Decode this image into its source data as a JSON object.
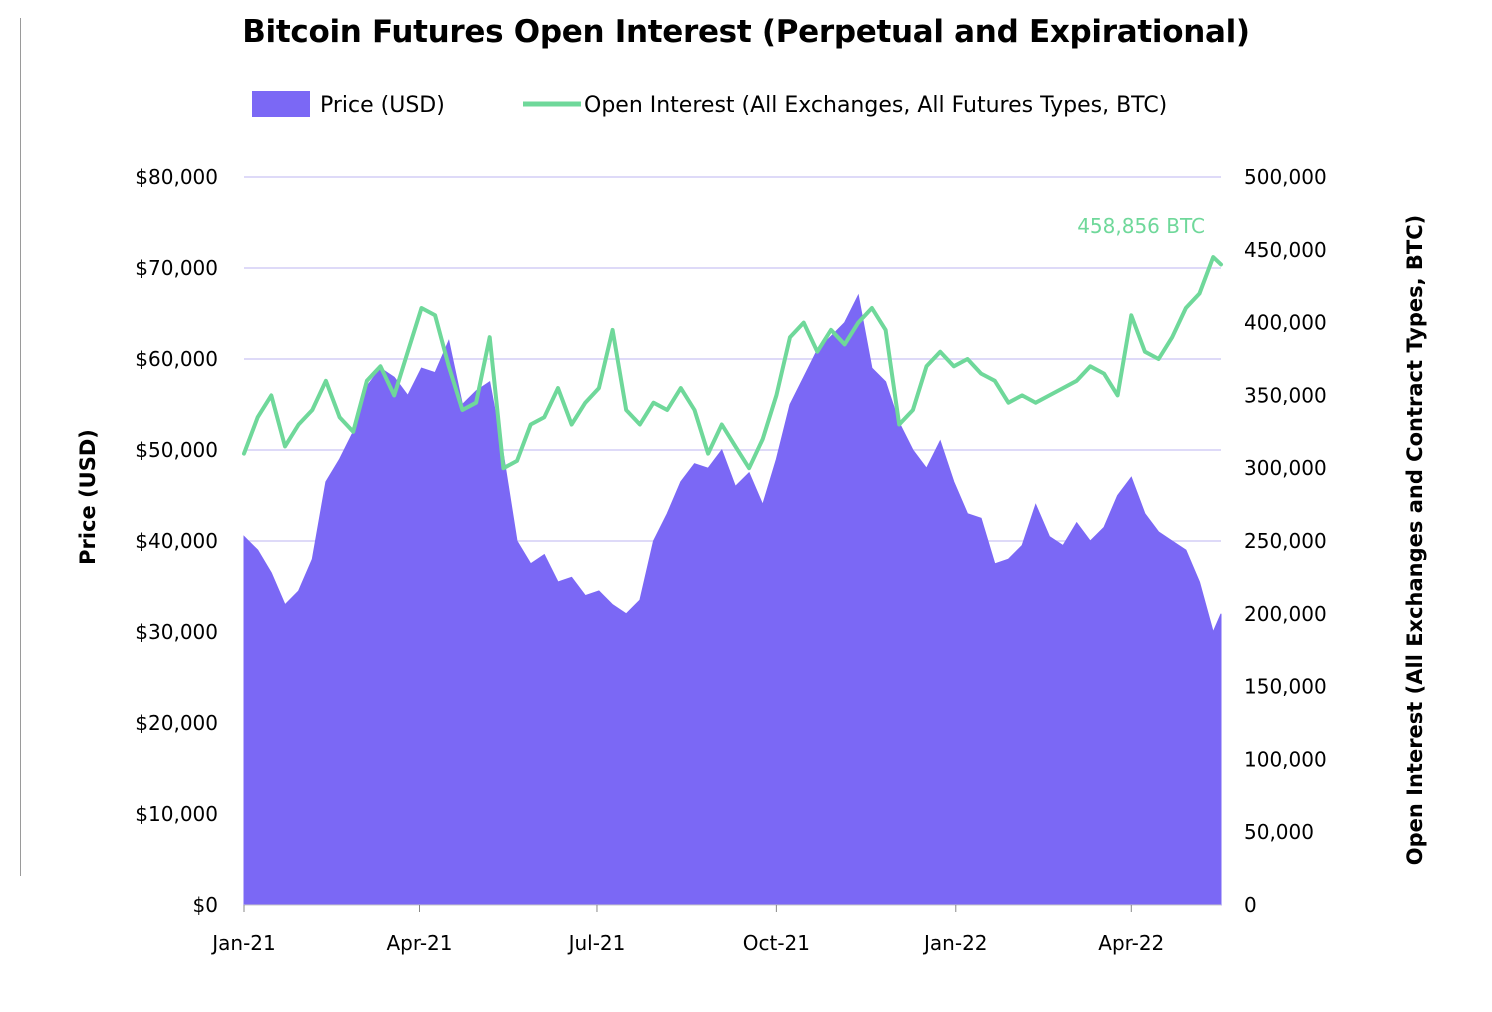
{
  "chart_data": {
    "type": "bar",
    "title": "Bitcoin Futures Open Interest (Perpetual and Expirational)",
    "x_ticks": [
      "Jan-21",
      "Apr-21",
      "Jul-21",
      "Oct-21",
      "Jan-22",
      "Apr-22"
    ],
    "x_range": [
      "2021-01-01",
      "2022-05-17"
    ],
    "y_left": {
      "label": "Price (USD)",
      "range": [
        0,
        80000
      ],
      "ticks": [
        "$0",
        "$10,000",
        "$20,000",
        "$30,000",
        "$40,000",
        "$50,000",
        "$60,000",
        "$70,000",
        "$80,000"
      ]
    },
    "y_right": {
      "label": "Open Interest (All Exchanges and Contract Types, BTC)",
      "range": [
        0,
        500000
      ],
      "ticks": [
        "0",
        "50,000",
        "100,000",
        "150,000",
        "200,000",
        "250,000",
        "300,000",
        "350,000",
        "400,000",
        "450,000",
        "500,000"
      ]
    },
    "grid": true,
    "legend_position": "top-center",
    "annotation": "458,856 BTC",
    "colors": {
      "price": "#7B68F5",
      "open_interest": "#6FD89A",
      "grid": "#D3CEF5"
    },
    "series": [
      {
        "name": "Price (USD)",
        "type": "area",
        "x": [
          "2021-01-01",
          "2021-01-08",
          "2021-01-15",
          "2021-01-22",
          "2021-01-29",
          "2021-02-05",
          "2021-02-12",
          "2021-02-19",
          "2021-02-26",
          "2021-03-05",
          "2021-03-12",
          "2021-03-19",
          "2021-03-26",
          "2021-04-02",
          "2021-04-09",
          "2021-04-16",
          "2021-04-23",
          "2021-04-30",
          "2021-05-07",
          "2021-05-14",
          "2021-05-21",
          "2021-05-28",
          "2021-06-04",
          "2021-06-11",
          "2021-06-18",
          "2021-06-25",
          "2021-07-02",
          "2021-07-09",
          "2021-07-16",
          "2021-07-23",
          "2021-07-30",
          "2021-08-06",
          "2021-08-13",
          "2021-08-20",
          "2021-08-27",
          "2021-09-03",
          "2021-09-10",
          "2021-09-17",
          "2021-09-24",
          "2021-10-01",
          "2021-10-08",
          "2021-10-15",
          "2021-10-22",
          "2021-10-29",
          "2021-11-05",
          "2021-11-12",
          "2021-11-19",
          "2021-11-26",
          "2021-12-03",
          "2021-12-10",
          "2021-12-17",
          "2021-12-24",
          "2021-12-31",
          "2022-01-07",
          "2022-01-14",
          "2022-01-21",
          "2022-01-28",
          "2022-02-04",
          "2022-02-11",
          "2022-02-18",
          "2022-02-25",
          "2022-03-04",
          "2022-03-11",
          "2022-03-18",
          "2022-03-25",
          "2022-04-01",
          "2022-04-08",
          "2022-04-15",
          "2022-04-22",
          "2022-04-29",
          "2022-05-06",
          "2022-05-13",
          "2022-05-17"
        ],
        "values": [
          40500,
          39000,
          36500,
          33000,
          34500,
          38000,
          46500,
          49000,
          52000,
          57000,
          59000,
          58000,
          56000,
          59000,
          58500,
          62000,
          55000,
          56500,
          57500,
          49500,
          40000,
          37500,
          38500,
          35500,
          36000,
          34000,
          34500,
          33000,
          32000,
          33500,
          40000,
          43000,
          46500,
          48500,
          48000,
          50000,
          46000,
          47500,
          44000,
          49000,
          55000,
          58000,
          61000,
          62500,
          64000,
          67000,
          59000,
          57500,
          53000,
          50000,
          48000,
          51000,
          46500,
          43000,
          42500,
          37500,
          38000,
          39500,
          44000,
          40500,
          39500,
          42000,
          40000,
          41500,
          45000,
          47000,
          43000,
          41000,
          40000,
          39000,
          35500,
          30000,
          32000
        ]
      },
      {
        "name": "Open Interest (All Exchanges, All Futures Types, BTC)",
        "type": "line",
        "x": [
          "2021-01-01",
          "2021-01-08",
          "2021-01-15",
          "2021-01-22",
          "2021-01-29",
          "2021-02-05",
          "2021-02-12",
          "2021-02-19",
          "2021-02-26",
          "2021-03-05",
          "2021-03-12",
          "2021-03-19",
          "2021-03-26",
          "2021-04-02",
          "2021-04-09",
          "2021-04-16",
          "2021-04-23",
          "2021-04-30",
          "2021-05-07",
          "2021-05-14",
          "2021-05-21",
          "2021-05-28",
          "2021-06-04",
          "2021-06-11",
          "2021-06-18",
          "2021-06-25",
          "2021-07-02",
          "2021-07-09",
          "2021-07-16",
          "2021-07-23",
          "2021-07-30",
          "2021-08-06",
          "2021-08-13",
          "2021-08-20",
          "2021-08-27",
          "2021-09-03",
          "2021-09-10",
          "2021-09-17",
          "2021-09-24",
          "2021-10-01",
          "2021-10-08",
          "2021-10-15",
          "2021-10-22",
          "2021-10-29",
          "2021-11-05",
          "2021-11-12",
          "2021-11-19",
          "2021-11-26",
          "2021-12-03",
          "2021-12-10",
          "2021-12-17",
          "2021-12-24",
          "2021-12-31",
          "2022-01-07",
          "2022-01-14",
          "2022-01-21",
          "2022-01-28",
          "2022-02-04",
          "2022-02-11",
          "2022-02-18",
          "2022-02-25",
          "2022-03-04",
          "2022-03-11",
          "2022-03-18",
          "2022-03-25",
          "2022-04-01",
          "2022-04-08",
          "2022-04-15",
          "2022-04-22",
          "2022-04-29",
          "2022-05-06",
          "2022-05-13",
          "2022-05-17"
        ],
        "values": [
          310000,
          335000,
          350000,
          315000,
          330000,
          340000,
          360000,
          335000,
          325000,
          360000,
          370000,
          350000,
          380000,
          410000,
          405000,
          370000,
          340000,
          345000,
          390000,
          300000,
          305000,
          330000,
          335000,
          355000,
          330000,
          345000,
          355000,
          395000,
          340000,
          330000,
          345000,
          340000,
          355000,
          340000,
          310000,
          330000,
          315000,
          300000,
          320000,
          350000,
          390000,
          400000,
          380000,
          395000,
          385000,
          400000,
          410000,
          395000,
          330000,
          340000,
          370000,
          380000,
          370000,
          375000,
          365000,
          360000,
          345000,
          350000,
          345000,
          350000,
          355000,
          360000,
          370000,
          365000,
          350000,
          405000,
          380000,
          375000,
          390000,
          410000,
          420000,
          445000,
          440000
        ]
      }
    ]
  }
}
